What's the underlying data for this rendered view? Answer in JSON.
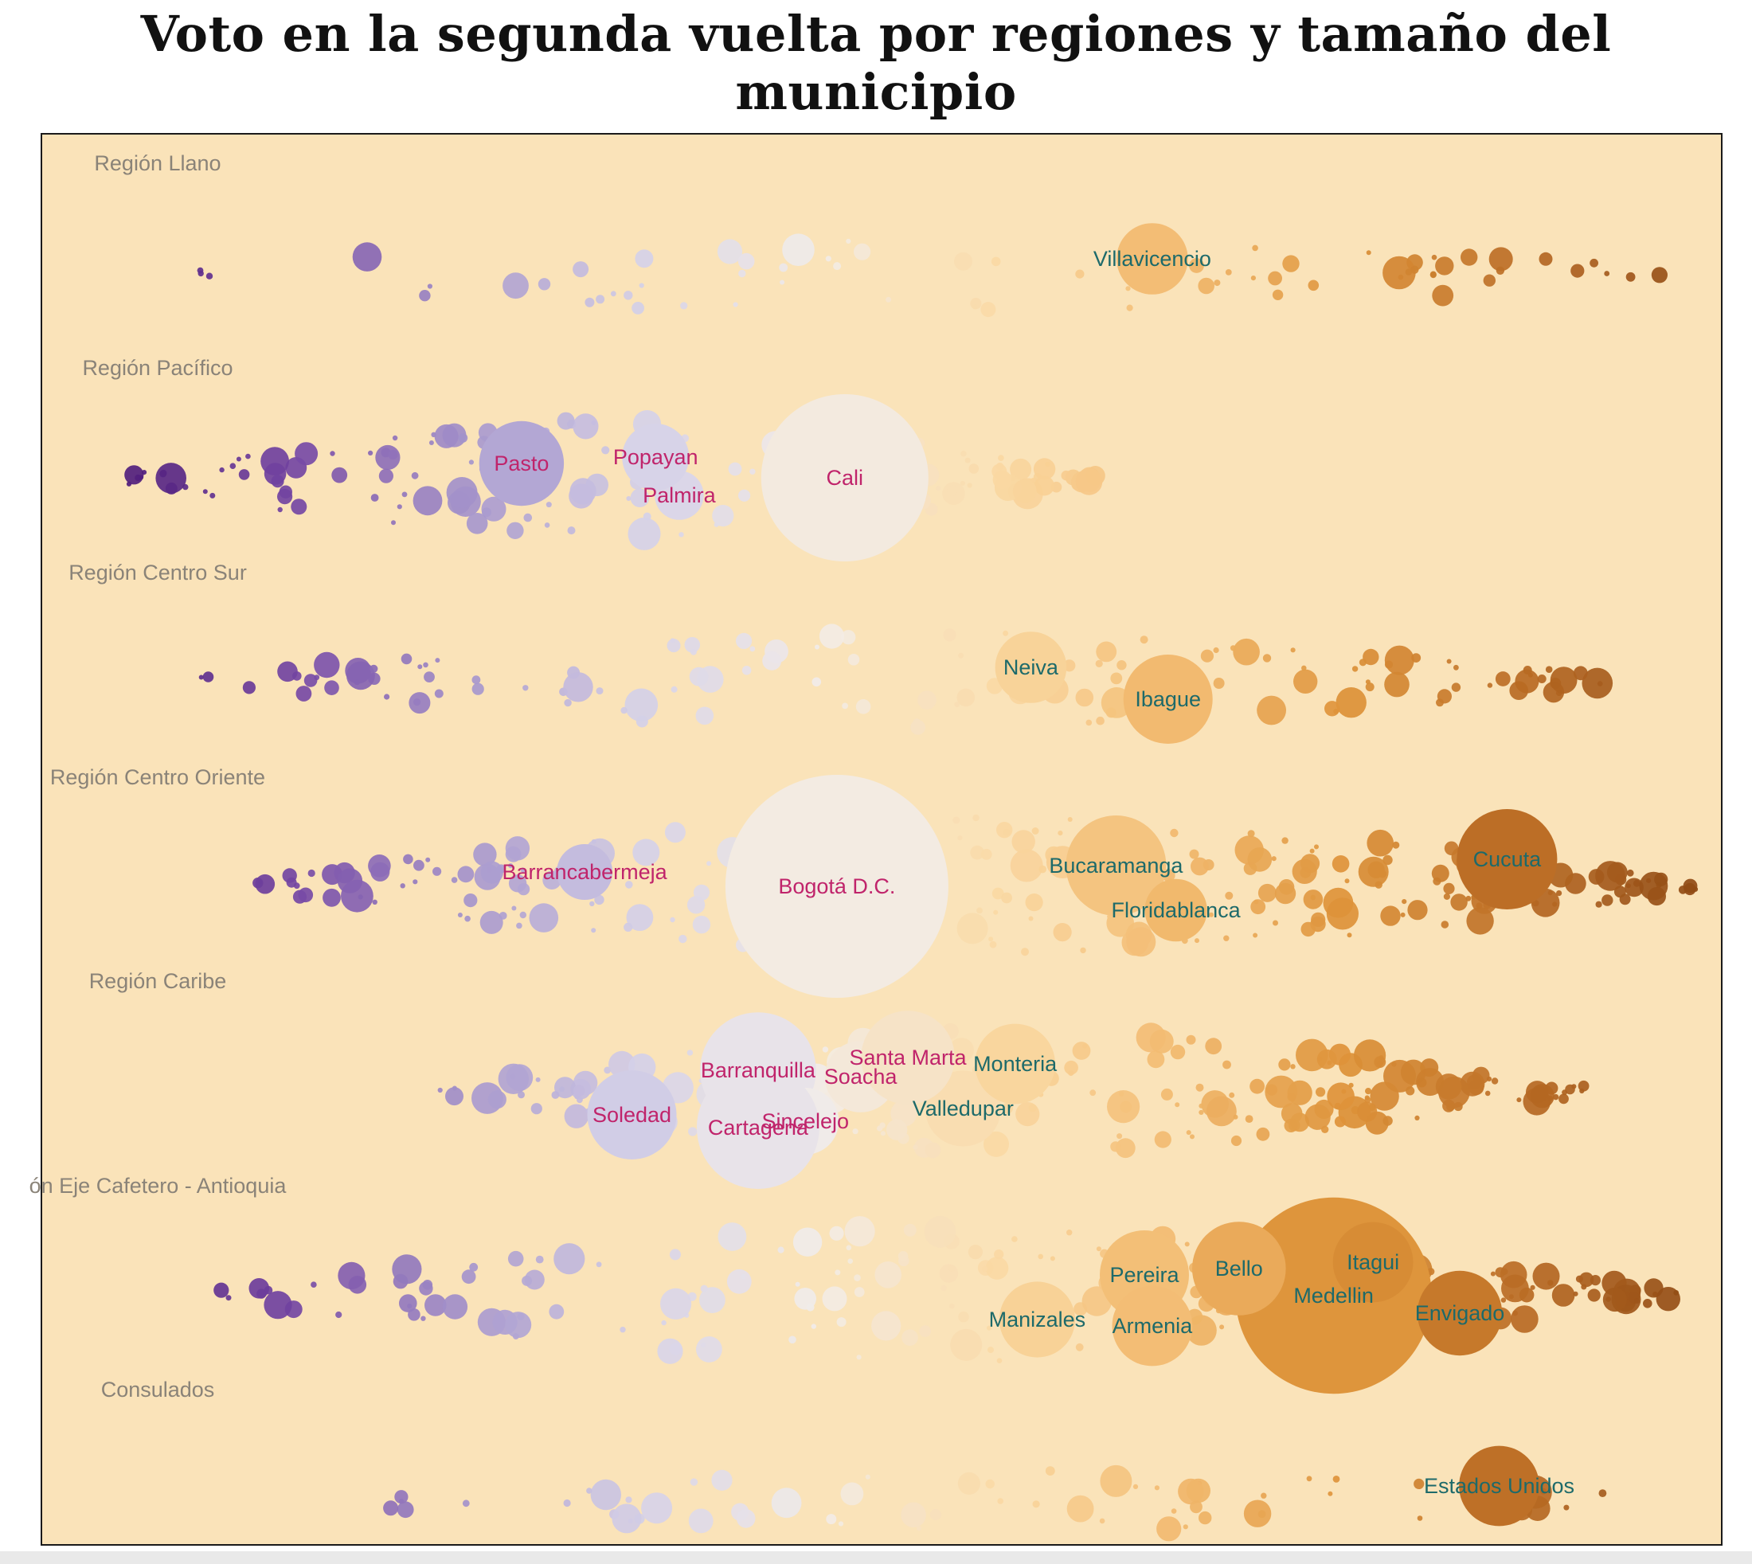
{
  "title": "Voto en la segunda vuelta por regiones y tamaño del municipio",
  "colors": {
    "background": "#fae3b9",
    "frame": "#1a1a1a",
    "scale": [
      "#4e1b7a",
      "#7446a3",
      "#a595cc",
      "#d5d1e8",
      "#f2ede9",
      "#fad9a4",
      "#f2ba6f",
      "#dd9238",
      "#b96b24",
      "#8f4a14"
    ],
    "label_purple": "#c0246b",
    "label_teal": "#1d6a6a",
    "region_label": "#8a8378"
  },
  "chart_data": {
    "type": "beeswarm",
    "x_measure": "participacion de voto (de un candidato al otro)",
    "size_measure": "tamaño del municipio",
    "regions": [
      {
        "name": "Región Llano",
        "cities": [
          {
            "name": "Villavicencio",
            "x": 0.655,
            "size": 0.32,
            "label_color": "teal"
          }
        ]
      },
      {
        "name": "Región Pacífico",
        "cities": [
          {
            "name": "Pasto",
            "x": 0.255,
            "size": 0.38,
            "label_color": "purple"
          },
          {
            "name": "Palmira",
            "x": 0.355,
            "size": 0.22,
            "label_color": "purple"
          },
          {
            "name": "Popayan",
            "x": 0.34,
            "size": 0.3,
            "label_color": "purple"
          },
          {
            "name": "Cali",
            "x": 0.46,
            "size": 0.75,
            "label_color": "purple"
          }
        ]
      },
      {
        "name": "Región Centro Sur",
        "cities": [
          {
            "name": "Neiva",
            "x": 0.578,
            "size": 0.32,
            "label_color": "teal"
          },
          {
            "name": "Ibague",
            "x": 0.665,
            "size": 0.4,
            "label_color": "teal"
          }
        ]
      },
      {
        "name": "Región Centro Oriente",
        "cities": [
          {
            "name": "Barrancabermeja",
            "x": 0.295,
            "size": 0.25,
            "label_color": "purple"
          },
          {
            "name": "Bogotá D.C.",
            "x": 0.455,
            "size": 1.0,
            "label_color": "purple"
          },
          {
            "name": "Bucaramanga",
            "x": 0.632,
            "size": 0.45,
            "label_color": "teal"
          },
          {
            "name": "Floridablanca",
            "x": 0.67,
            "size": 0.28,
            "label_color": "teal"
          },
          {
            "name": "Cucuta",
            "x": 0.88,
            "size": 0.45,
            "label_color": "teal"
          }
        ]
      },
      {
        "name": "Región Caribe",
        "cities": [
          {
            "name": "Soacha",
            "x": 0.47,
            "size": 0.32,
            "label_color": "purple"
          },
          {
            "name": "Valledupar",
            "x": 0.535,
            "size": 0.34,
            "label_color": "teal"
          },
          {
            "name": "Barranquilla",
            "x": 0.405,
            "size": 0.52,
            "label_color": "purple"
          },
          {
            "name": "Soledad",
            "x": 0.325,
            "size": 0.4,
            "label_color": "purple"
          },
          {
            "name": "Monteria",
            "x": 0.568,
            "size": 0.36,
            "label_color": "teal"
          },
          {
            "name": "Sincelejo",
            "x": 0.435,
            "size": 0.3,
            "label_color": "purple"
          },
          {
            "name": "Santa Marta",
            "x": 0.5,
            "size": 0.42,
            "label_color": "purple"
          },
          {
            "name": "Cartagena",
            "x": 0.405,
            "size": 0.55,
            "label_color": "purple"
          }
        ]
      },
      {
        "name": "ón Eje Cafetero - Antioquia",
        "cities": [
          {
            "name": "Medellin",
            "x": 0.77,
            "size": 0.88,
            "label_color": "teal"
          },
          {
            "name": "Envigado",
            "x": 0.85,
            "size": 0.38,
            "label_color": "teal"
          },
          {
            "name": "Pereira",
            "x": 0.65,
            "size": 0.4,
            "label_color": "teal"
          },
          {
            "name": "Manizales",
            "x": 0.582,
            "size": 0.34,
            "label_color": "teal"
          },
          {
            "name": "Bello",
            "x": 0.71,
            "size": 0.42,
            "label_color": "teal"
          },
          {
            "name": "Armenia",
            "x": 0.655,
            "size": 0.36,
            "label_color": "teal"
          },
          {
            "name": "Itagui",
            "x": 0.795,
            "size": 0.36,
            "label_color": "teal"
          }
        ]
      },
      {
        "name": "Consulados",
        "cities": [
          {
            "name": "Estados Unidos",
            "x": 0.875,
            "size": 0.36,
            "label_color": "teal"
          }
        ]
      }
    ]
  }
}
